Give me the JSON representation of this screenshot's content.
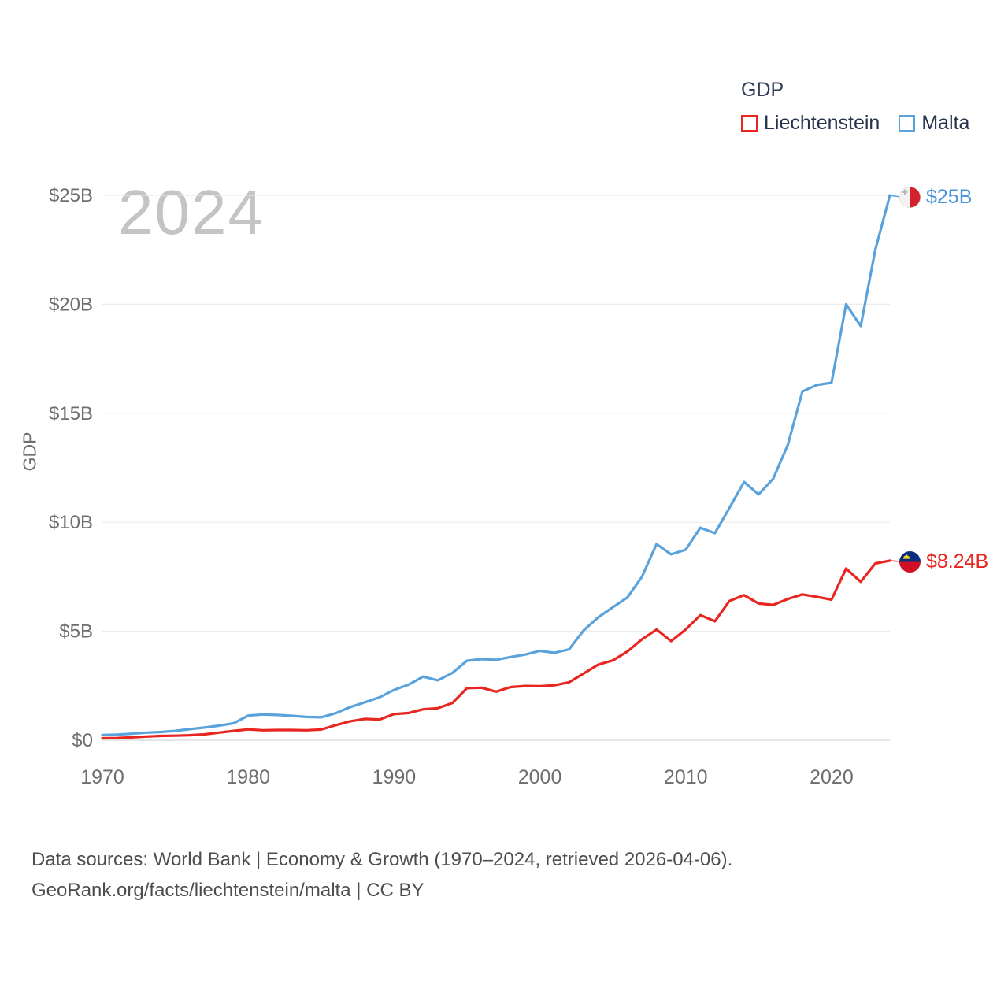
{
  "legend": {
    "title": "GDP",
    "items": [
      {
        "label": "Liechtenstein",
        "color": "#e8251f"
      },
      {
        "label": "Malta",
        "color": "#5aa2db"
      }
    ]
  },
  "watermark": "2024",
  "end_labels": [
    {
      "series": "Malta",
      "label": "$25B",
      "color": "#4a94dd",
      "flag": "malta-flag-icon"
    },
    {
      "series": "Liechtenstein",
      "label": "$8.24B",
      "color": "#e8251f",
      "flag": "liechtenstein-flag-icon"
    }
  ],
  "footer": {
    "line1": "Data sources: World Bank | Economy & Growth (1970–2024, retrieved 2026-04-06).",
    "line2": "GeoRank.org/facts/liechtenstein/malta | CC BY"
  },
  "chart_data": {
    "type": "line",
    "title": "GDP",
    "y_label": "GDP",
    "x_label": "",
    "ylim": [
      0,
      25
    ],
    "grid": true,
    "legend_position": "top-right",
    "x_ticks": [
      1970,
      1980,
      1990,
      2000,
      2010,
      2020
    ],
    "y_ticks": [
      {
        "value": 0,
        "label": "$0"
      },
      {
        "value": 5,
        "label": "$5B"
      },
      {
        "value": 10,
        "label": "$10B"
      },
      {
        "value": 15,
        "label": "$15B"
      },
      {
        "value": 20,
        "label": "$20B"
      },
      {
        "value": 25,
        "label": "$25B"
      }
    ],
    "x": [
      1970,
      1971,
      1972,
      1973,
      1974,
      1975,
      1976,
      1977,
      1978,
      1979,
      1980,
      1981,
      1982,
      1983,
      1984,
      1985,
      1986,
      1987,
      1988,
      1989,
      1990,
      1991,
      1992,
      1993,
      1994,
      1995,
      1996,
      1997,
      1998,
      1999,
      2000,
      2001,
      2002,
      2003,
      2004,
      2005,
      2006,
      2007,
      2008,
      2009,
      2010,
      2011,
      2012,
      2013,
      2014,
      2015,
      2016,
      2017,
      2018,
      2019,
      2020,
      2021,
      2022,
      2023,
      2024
    ],
    "series": [
      {
        "name": "Liechtenstein",
        "color": "#e8251f",
        "values": [
          0.09,
          0.1,
          0.13,
          0.17,
          0.2,
          0.21,
          0.23,
          0.27,
          0.35,
          0.43,
          0.5,
          0.46,
          0.47,
          0.47,
          0.46,
          0.49,
          0.69,
          0.87,
          0.98,
          0.95,
          1.2,
          1.25,
          1.42,
          1.47,
          1.71,
          2.39,
          2.41,
          2.23,
          2.44,
          2.49,
          2.48,
          2.52,
          2.66,
          3.06,
          3.47,
          3.66,
          4.07,
          4.63,
          5.08,
          4.55,
          5.08,
          5.74,
          5.46,
          6.39,
          6.66,
          6.27,
          6.21,
          6.48,
          6.69,
          6.58,
          6.45,
          7.88,
          7.27,
          8.11,
          8.24
        ]
      },
      {
        "name": "Malta",
        "color": "#5aa2db",
        "values": [
          0.24,
          0.26,
          0.3,
          0.35,
          0.38,
          0.43,
          0.51,
          0.58,
          0.67,
          0.78,
          1.13,
          1.18,
          1.16,
          1.12,
          1.07,
          1.05,
          1.24,
          1.52,
          1.74,
          1.97,
          2.31,
          2.55,
          2.92,
          2.75,
          3.09,
          3.65,
          3.72,
          3.69,
          3.82,
          3.93,
          4.1,
          4.01,
          4.17,
          5.04,
          5.64,
          6.1,
          6.55,
          7.5,
          9.0,
          8.53,
          8.74,
          9.75,
          9.5,
          10.66,
          11.85,
          11.28,
          12.0,
          13.55,
          16.0,
          16.3,
          16.4,
          20.0,
          19.0,
          22.5,
          25.0
        ]
      }
    ]
  }
}
